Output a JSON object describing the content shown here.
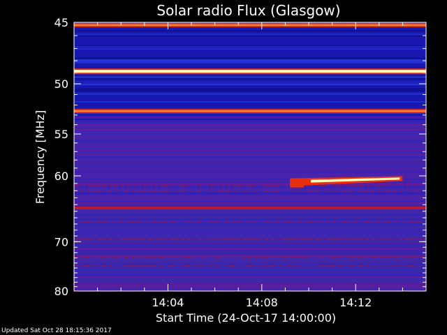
{
  "chart_data": {
    "type": "heatmap",
    "title": "Solar radio Flux (Glasgow)",
    "xlabel": "Start Time (24-Oct-17 14:00:00)",
    "ylabel": "Frequency [MHz]",
    "x_unit": "minutes after 14:00",
    "xlim": [
      0,
      15
    ],
    "ylim": [
      45,
      80
    ],
    "y_scale": "reciprocal",
    "x_ticks": [
      {
        "value": 4,
        "label": "14:04"
      },
      {
        "value": 8,
        "label": "14:08"
      },
      {
        "value": 12,
        "label": "14:12"
      }
    ],
    "y_ticks": [
      {
        "value": 45,
        "label": "45"
      },
      {
        "value": 50,
        "label": "50"
      },
      {
        "value": 55,
        "label": "55"
      },
      {
        "value": 60,
        "label": "60"
      },
      {
        "value": 70,
        "label": "70"
      },
      {
        "value": 80,
        "label": "80"
      }
    ],
    "constant_bands": [
      {
        "freq": 45.2,
        "intensity": "high"
      },
      {
        "freq": 48.9,
        "intensity": "very high"
      },
      {
        "freq": 52.6,
        "intensity": "high"
      },
      {
        "freq": 64.5,
        "intensity": "medium"
      }
    ],
    "burst": {
      "description_visible": false,
      "start_min": 9.2,
      "end_min": 14.0,
      "start_freq": 60.7,
      "end_freq": 60.4
    },
    "colors": {
      "background": "#000000",
      "low": "#1a1aa8",
      "mid": "#6a1a9a",
      "high": "#e83010",
      "peak": "#ffffc0"
    }
  },
  "footer": {
    "updated": "Updated Sat Oct 28 18:15:36 2017"
  }
}
